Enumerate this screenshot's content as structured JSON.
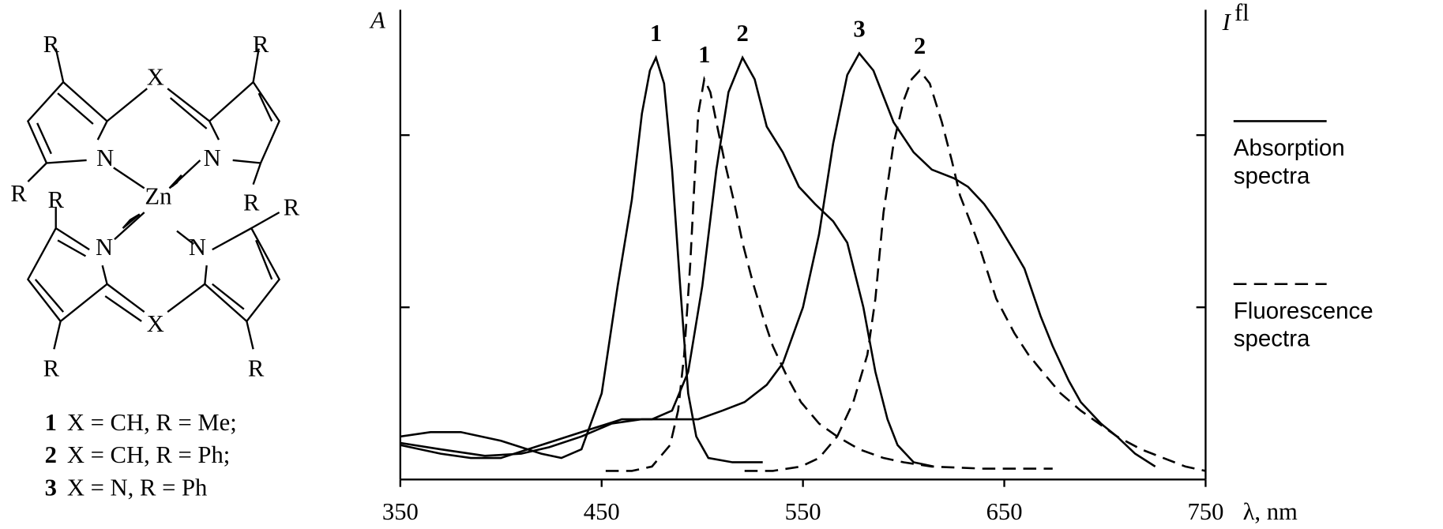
{
  "structure": {
    "labels": [
      "R",
      "R",
      "X",
      "N",
      "N",
      "R",
      "R",
      "Zn",
      "R",
      "R",
      "N",
      "N",
      "X",
      "R",
      "R"
    ],
    "caption": [
      {
        "num": "1",
        "text": "X = CH, R = Me;"
      },
      {
        "num": "2",
        "text": "X = CH, R = Ph;"
      },
      {
        "num": "3",
        "text": "X = N, R = Ph"
      }
    ]
  },
  "chart_data": {
    "type": "line",
    "y_label": "A",
    "y2_label": "I",
    "y2_label_sup": "fl",
    "x_label": "λ, nm",
    "xlim": [
      350,
      750
    ],
    "xticks": [
      350,
      450,
      550,
      650,
      750
    ],
    "ylim": [
      0,
      1.1
    ],
    "yticks": [
      0.4,
      0.8
    ],
    "legend": [
      {
        "label": "Absorption spectra",
        "style": "solid"
      },
      {
        "label": "Fluorescence spectra",
        "style": "dashed"
      }
    ],
    "series": [
      {
        "name": "1",
        "style": "solid",
        "color": "#000000",
        "x": [
          350,
          365,
          380,
          400,
          420,
          430,
          440,
          450,
          458,
          465,
          470,
          474,
          477,
          481,
          485,
          489,
          493,
          497,
          503,
          515,
          530
        ],
        "values": [
          0.1,
          0.11,
          0.11,
          0.09,
          0.06,
          0.05,
          0.07,
          0.2,
          0.45,
          0.65,
          0.85,
          0.95,
          0.98,
          0.92,
          0.72,
          0.45,
          0.2,
          0.1,
          0.05,
          0.04,
          0.04
        ]
      },
      {
        "name": "2",
        "style": "solid",
        "color": "#000000",
        "x": [
          350,
          370,
          385,
          400,
          420,
          440,
          460,
          475,
          485,
          493,
          500,
          507,
          513,
          520,
          526,
          532,
          540,
          548,
          556,
          565,
          572,
          580,
          586,
          592,
          597,
          605,
          615
        ],
        "values": [
          0.08,
          0.06,
          0.05,
          0.05,
          0.08,
          0.11,
          0.14,
          0.14,
          0.16,
          0.25,
          0.45,
          0.72,
          0.9,
          0.98,
          0.93,
          0.82,
          0.76,
          0.68,
          0.64,
          0.6,
          0.55,
          0.4,
          0.25,
          0.14,
          0.08,
          0.04,
          0.03
        ]
      },
      {
        "name": "3",
        "style": "solid",
        "color": "#000000",
        "x": [
          350,
          370,
          392,
          410,
          424,
          440,
          455,
          470,
          485,
          498,
          510,
          521,
          532,
          540,
          550,
          558,
          565,
          572,
          578,
          585,
          595,
          605,
          614,
          625,
          632,
          640,
          646,
          655,
          660,
          668,
          674,
          682,
          688,
          698,
          706,
          715,
          725
        ],
        "values": [
          0.085,
          0.07,
          0.055,
          0.06,
          0.075,
          0.1,
          0.13,
          0.14,
          0.14,
          0.14,
          0.16,
          0.18,
          0.22,
          0.27,
          0.4,
          0.57,
          0.78,
          0.94,
          0.99,
          0.95,
          0.83,
          0.76,
          0.72,
          0.7,
          0.68,
          0.64,
          0.6,
          0.53,
          0.49,
          0.38,
          0.31,
          0.23,
          0.18,
          0.13,
          0.1,
          0.06,
          0.03
        ]
      },
      {
        "name": "1",
        "style": "dashed",
        "color": "#000000",
        "x": [
          452,
          465,
          475,
          484,
          488,
          491,
          494,
          496,
          498,
          501,
          504,
          507,
          511,
          516,
          520,
          525,
          530,
          535,
          542,
          549,
          558,
          567,
          578,
          590,
          600,
          614,
          640,
          674
        ],
        "values": [
          0.02,
          0.02,
          0.03,
          0.08,
          0.16,
          0.29,
          0.5,
          0.68,
          0.85,
          0.93,
          0.9,
          0.83,
          0.74,
          0.64,
          0.55,
          0.46,
          0.38,
          0.31,
          0.24,
          0.18,
          0.13,
          0.1,
          0.07,
          0.05,
          0.04,
          0.03,
          0.025,
          0.025
        ]
      },
      {
        "name": "2",
        "style": "dashed",
        "color": "#000000",
        "x": [
          521,
          535,
          549,
          558,
          567,
          575,
          582,
          586,
          590,
          595,
          600,
          604,
          608,
          613,
          619,
          624,
          628,
          633,
          637,
          646,
          655,
          662,
          669,
          678,
          688,
          697,
          706,
          718,
          729,
          740,
          750
        ],
        "values": [
          0.02,
          0.02,
          0.03,
          0.05,
          0.1,
          0.18,
          0.29,
          0.42,
          0.62,
          0.78,
          0.88,
          0.93,
          0.95,
          0.92,
          0.83,
          0.74,
          0.66,
          0.6,
          0.55,
          0.42,
          0.34,
          0.29,
          0.25,
          0.2,
          0.16,
          0.13,
          0.1,
          0.07,
          0.05,
          0.03,
          0.02
        ]
      }
    ]
  }
}
